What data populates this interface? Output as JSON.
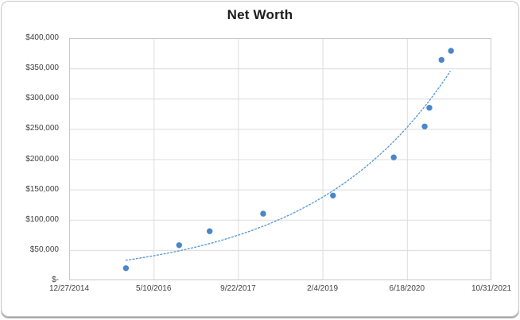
{
  "frame": {
    "background": "#ffffff",
    "border_color": "#c7c7c7",
    "shadow_color": "#ababab",
    "gridline_color": "#dcdcdc",
    "plot_border_color": "#c9c9c9",
    "tick_label_color": "#404040"
  },
  "chart_data": {
    "type": "scatter",
    "title": "Net Worth",
    "xlabel": "",
    "ylabel": "",
    "legend": false,
    "grid": true,
    "x_axis": {
      "kind": "date",
      "tick_labels": [
        "12/27/2014",
        "5/10/2016",
        "9/22/2017",
        "2/4/2019",
        "6/18/2020",
        "10/31/2021"
      ],
      "tick_interval_days": 500,
      "range_days": [
        0,
        2500
      ]
    },
    "y_axis": {
      "tick_labels": [
        "$-",
        "$50,000",
        "$100,000",
        "$150,000",
        "$200,000",
        "$250,000",
        "$300,000",
        "$350,000",
        "$400,000"
      ],
      "tick_interval": 50000,
      "range": [
        0,
        400000
      ]
    },
    "series": [
      {
        "name": "Net Worth",
        "marker_color": "#4a86c8",
        "marker_radius": 3.7,
        "points": [
          {
            "date_approx": "11/27/2015",
            "days": 336,
            "value": 20000
          },
          {
            "date_approx": "10/8/2016",
            "days": 651,
            "value": 58000
          },
          {
            "date_approx": "4/7/2017",
            "days": 832,
            "value": 81000
          },
          {
            "date_approx": "2/18/2018",
            "days": 1149,
            "value": 110000
          },
          {
            "date_approx": "4/7/2019",
            "days": 1562,
            "value": 140000
          },
          {
            "date_approx": "4/1/2020",
            "days": 1922,
            "value": 203000
          },
          {
            "date_approx": "9/30/2020",
            "days": 2105,
            "value": 254000
          },
          {
            "date_approx": "10/28/2020",
            "days": 2133,
            "value": 285000
          },
          {
            "date_approx": "1/8/2021",
            "days": 2205,
            "value": 364000
          },
          {
            "date_approx": "3/5/2021",
            "days": 2261,
            "value": 379000
          }
        ]
      }
    ],
    "trendline": {
      "type": "exponential",
      "style": "dotted",
      "color": "#5b9bd5",
      "fit_a": 22000,
      "fit_b": 0.00122,
      "domain_days": [
        336,
        2270
      ]
    }
  }
}
